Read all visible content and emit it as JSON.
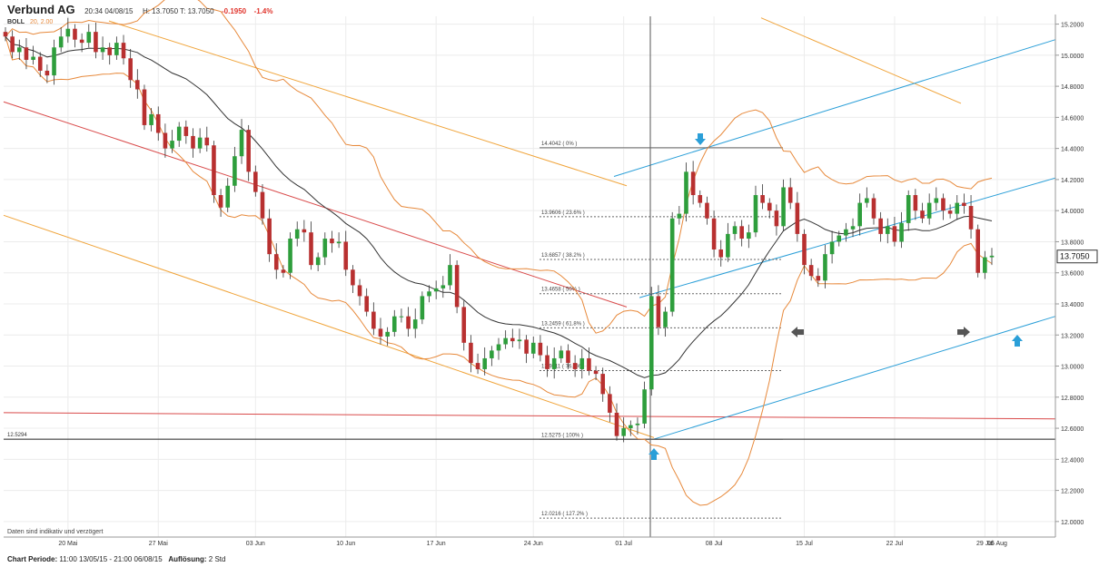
{
  "header": {
    "name": "Verbund AG",
    "datetime": "20:34 04/08/15",
    "high_low": "H: 13.7050  T: 13.7050",
    "change": "-0.1950",
    "change_pct": "-1.4%"
  },
  "indicator": {
    "label": "BOLL",
    "params": "20, 2.00"
  },
  "disclaimer": "Daten sind indikativ und verzögert",
  "footer": {
    "period_label": "Chart Periode:",
    "period_value": "11:00 13/05/15 - 21:00 06/08/15",
    "resolution_label": "Auflösung:",
    "resolution_value": "2 Std"
  },
  "colors": {
    "up": "#2e9e3c",
    "down": "#b83030",
    "sma": "#333333",
    "band": "#e7893b",
    "fib": "#666666",
    "channel_blue": "#2b9fd8",
    "channel_orange": "#f0a43a",
    "trend_red": "#d94a4a",
    "arrow_blue": "#2b9fd8",
    "arrow_gray": "#555555"
  },
  "chart_data": {
    "type": "candlestick",
    "ylim": [
      11.9,
      15.25
    ],
    "x_ticks": [
      "20 Mai",
      "27 Mai",
      "03 Jun",
      "10 Jun",
      "17 Jun",
      "24 Jun",
      "01 Jul",
      "08 Jul",
      "15 Jul",
      "22 Jul",
      "29 Jul",
      "05 Aug"
    ],
    "y_ticks": [
      "15.2000",
      "15.0000",
      "14.8000",
      "14.6000",
      "14.4000",
      "14.2000",
      "14.0000",
      "13.8000",
      "13.6000",
      "13.4000",
      "13.2000",
      "13.0000",
      "12.8000",
      "12.6000",
      "12.4000",
      "12.2000",
      "12.0000"
    ],
    "last_price": "13.7050",
    "left_level_label": "12.5294",
    "fib_levels": [
      {
        "label": "14.4042 ( 0% )",
        "value": 14.4042
      },
      {
        "label": "13.9606 ( 23.6% )",
        "value": 13.9606
      },
      {
        "label": "13.6857 ( 38.2% )",
        "value": 13.6857
      },
      {
        "label": "13.4658 ( 50% )",
        "value": 13.4658
      },
      {
        "label": "13.2459 ( 61.8% )",
        "value": 13.2459
      },
      {
        "label": "12.9711 ( 76.4% )",
        "value": 12.9711
      },
      {
        "label": "12.5275 ( 100% )",
        "value": 12.5275
      },
      {
        "label": "12.0216 ( 127.2% )",
        "value": 12.0216
      }
    ],
    "close": [
      15.12,
      15.02,
      15.05,
      14.97,
      14.99,
      14.9,
      14.87,
      15.05,
      15.12,
      15.17,
      15.1,
      15.08,
      15.15,
      15.02,
      15.05,
      15.0,
      15.08,
      14.98,
      14.84,
      14.78,
      14.55,
      14.62,
      14.5,
      14.4,
      14.45,
      14.54,
      14.48,
      14.4,
      14.47,
      14.42,
      14.1,
      14.02,
      14.16,
      14.35,
      14.52,
      14.25,
      14.12,
      13.95,
      13.72,
      13.62,
      13.6,
      13.82,
      13.88,
      13.86,
      13.65,
      13.7,
      13.82,
      13.79,
      13.8,
      13.62,
      13.52,
      13.45,
      13.35,
      13.24,
      13.19,
      13.22,
      13.32,
      13.32,
      13.24,
      13.3,
      13.45,
      13.48,
      13.5,
      13.52,
      13.65,
      13.38,
      13.15,
      13.02,
      12.98,
      13.05,
      13.1,
      13.14,
      13.18,
      13.16,
      13.17,
      13.08,
      13.15,
      13.07,
      12.98,
      13.05,
      13.1,
      13.02,
      12.98,
      13.05,
      12.97,
      12.95,
      12.82,
      12.7,
      12.55,
      12.6,
      12.62,
      12.63,
      12.85,
      13.45,
      13.25,
      13.35,
      13.95,
      13.98,
      14.25,
      14.1,
      14.05,
      13.95,
      13.75,
      13.7,
      13.85,
      13.9,
      13.82,
      13.86,
      14.1,
      14.05,
      14.0,
      13.9,
      14.15,
      14.05,
      13.85,
      13.65,
      13.58,
      13.55,
      13.72,
      13.8,
      13.84,
      13.88,
      13.9,
      14.05,
      14.08,
      13.95,
      13.85,
      13.9,
      13.8,
      13.92,
      14.1,
      14.0,
      13.95,
      14.05,
      14.08,
      14.0,
      13.98,
      14.05,
      14.03,
      13.88,
      13.6,
      13.7,
      13.71
    ]
  }
}
